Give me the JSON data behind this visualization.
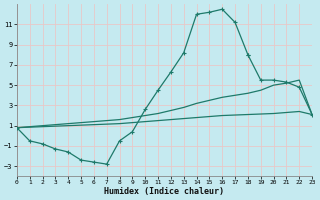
{
  "xlabel": "Humidex (Indice chaleur)",
  "bg_color": "#c5eaf0",
  "grid_color": "#ddf4f7",
  "line_color": "#1e7a6a",
  "xlim": [
    0,
    23
  ],
  "ylim": [
    -4,
    13
  ],
  "xticks": [
    0,
    1,
    2,
    3,
    4,
    5,
    6,
    7,
    8,
    9,
    10,
    11,
    12,
    13,
    14,
    15,
    16,
    17,
    18,
    19,
    20,
    21,
    22,
    23
  ],
  "yticks": [
    -3,
    -1,
    1,
    3,
    5,
    7,
    9,
    11
  ],
  "curve1_x": [
    0,
    1,
    2,
    3,
    4,
    5,
    6,
    7,
    8,
    9,
    10,
    11,
    12,
    13,
    14,
    15,
    16,
    17,
    18
  ],
  "curve1_y": [
    0.8,
    -0.5,
    -0.8,
    -1.3,
    -1.6,
    -2.4,
    -2.6,
    -2.8,
    -0.5,
    0.4,
    2.6,
    4.5,
    6.3,
    8.2,
    12.0,
    12.2,
    12.5,
    11.2,
    8.0
  ],
  "curve2_x": [
    18,
    19,
    20,
    21,
    22,
    23
  ],
  "curve2_y": [
    8.0,
    5.5,
    5.5,
    5.3,
    4.8,
    2.1
  ],
  "curve3_x": [
    0,
    1,
    2,
    3,
    4,
    5,
    6,
    7,
    8,
    9,
    10,
    11,
    12,
    13,
    14,
    15,
    16,
    17,
    18,
    19,
    20,
    21,
    22,
    23
  ],
  "curve3_y": [
    0.8,
    0.85,
    0.9,
    0.95,
    1.0,
    1.05,
    1.1,
    1.15,
    1.2,
    1.3,
    1.4,
    1.5,
    1.6,
    1.7,
    1.8,
    1.9,
    2.0,
    2.05,
    2.1,
    2.15,
    2.2,
    2.3,
    2.4,
    2.1
  ],
  "curve4_x": [
    0,
    1,
    2,
    3,
    4,
    5,
    6,
    7,
    8,
    9,
    10,
    11,
    12,
    13,
    14,
    15,
    16,
    17,
    18,
    19,
    20,
    21,
    22,
    23
  ],
  "curve4_y": [
    0.8,
    0.9,
    1.0,
    1.1,
    1.2,
    1.3,
    1.4,
    1.5,
    1.6,
    1.8,
    2.0,
    2.2,
    2.5,
    2.8,
    3.2,
    3.5,
    3.8,
    4.0,
    4.2,
    4.5,
    5.0,
    5.2,
    5.5,
    2.1
  ]
}
